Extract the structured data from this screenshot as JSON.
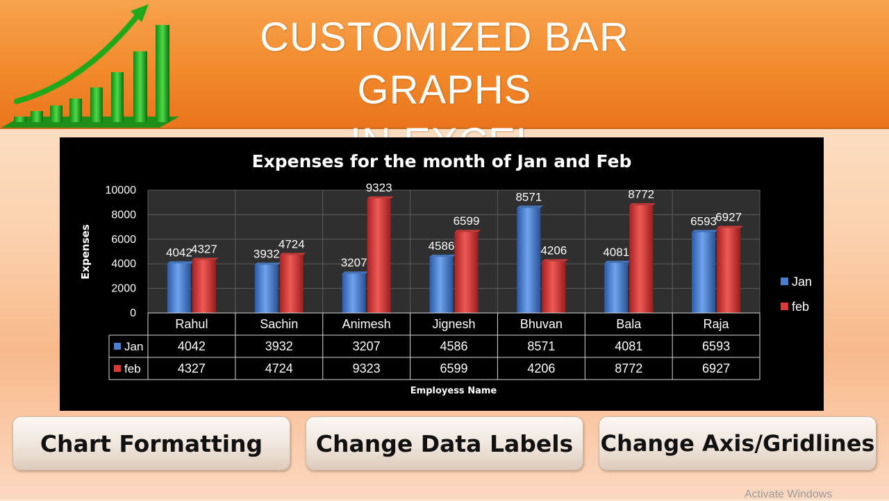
{
  "banner": {
    "title_line1": "CUSTOMIZED BAR GRAPHS",
    "title_line2": "IN EXCEL",
    "logo_icon": "growth-bars-arrow-icon"
  },
  "buttons": {
    "chart_formatting": "Chart Formatting",
    "change_data_labels": "Change Data Labels",
    "change_axis_gridlines": "Change Axis/Gridlines"
  },
  "watermark": "Activate Windows",
  "colors": {
    "jan": "#4a7fd0",
    "feb": "#d93a38",
    "banner": "#f28a2c",
    "chart_background": "#000000"
  },
  "chart_data": {
    "type": "bar",
    "title": "Expenses for the month of Jan and Feb",
    "xlabel": "Employess Name",
    "ylabel": "Expenses",
    "categories": [
      "Rahul",
      "Sachin",
      "Animesh",
      "Jignesh",
      "Bhuvan",
      "Bala",
      "Raja"
    ],
    "series": [
      {
        "name": "Jan",
        "values": [
          4042,
          3932,
          3207,
          4586,
          8571,
          4081,
          6593
        ]
      },
      {
        "name": "feb",
        "values": [
          4327,
          4724,
          9323,
          6599,
          4206,
          8772,
          6927
        ]
      }
    ],
    "ylim": [
      0,
      10000
    ],
    "yticks": [
      0,
      2000,
      4000,
      6000,
      8000,
      10000
    ],
    "grid": true,
    "legend": "right",
    "data_labels": true,
    "data_table": true
  }
}
